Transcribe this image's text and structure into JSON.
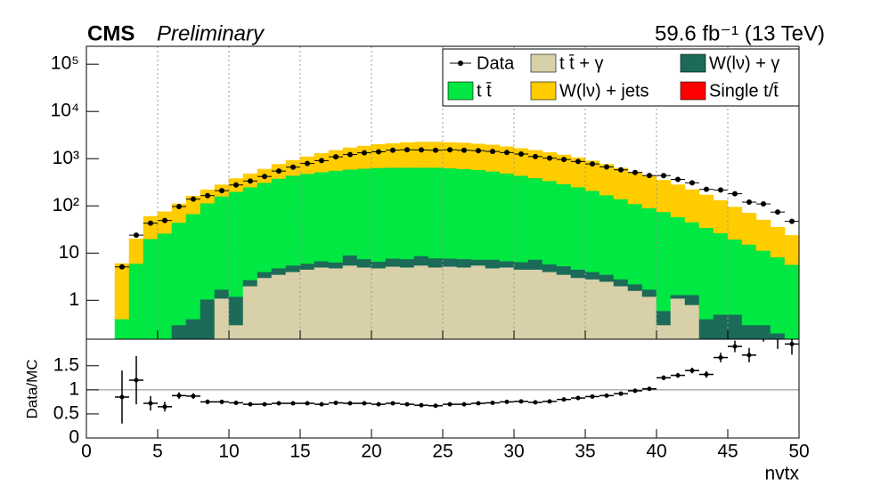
{
  "chart_data": [
    {
      "type": "histogram",
      "title": "CMS",
      "subtitle": "Preliminary",
      "annotation": "59.6 fb⁻¹ (13 TeV)",
      "stacked": true,
      "log_y": true,
      "grid": true,
      "legend": "top-right",
      "xlim": [
        0,
        50
      ],
      "xticks": [
        0,
        5,
        10,
        15,
        20,
        25,
        30,
        35,
        40,
        45,
        50
      ],
      "ylim": [
        0.15,
        240000
      ],
      "yticks": [
        {
          "value": 100000,
          "label": "10⁵"
        },
        {
          "value": 10000,
          "label": "10⁴"
        },
        {
          "value": 1000,
          "label": "10³"
        },
        {
          "value": 100,
          "label": "10²"
        },
        10,
        1
      ],
      "bins": [
        2,
        3,
        4,
        5,
        6,
        7,
        8,
        9,
        10,
        11,
        12,
        13,
        14,
        15,
        16,
        17,
        18,
        19,
        20,
        21,
        22,
        23,
        24,
        25,
        26,
        27,
        28,
        29,
        30,
        31,
        32,
        33,
        34,
        35,
        36,
        37,
        38,
        39,
        40,
        41,
        42,
        43,
        44,
        45,
        46,
        47,
        48,
        49,
        50
      ],
      "series": [
        {
          "name": "Data",
          "color": "#000000",
          "marker": "point",
          "values": [
            5.1,
            24,
            43,
            49,
            97,
            139,
            165,
            210,
            277,
            336,
            420,
            547,
            662,
            792,
            910,
            1095,
            1224,
            1332,
            1400,
            1512,
            1540,
            1530,
            1508,
            1540,
            1505,
            1476,
            1424,
            1350,
            1254,
            1110,
            1026,
            960,
            872,
            774,
            669,
            580,
            510,
            439,
            438,
            364,
            308,
            224,
            217,
            181,
            120,
            110,
            74,
            47
          ]
        },
        {
          "name": "t t̄ + γ",
          "color": "#d8d0a8",
          "values": [
            0,
            0,
            0,
            0,
            0,
            0,
            0.15,
            1.1,
            0.3,
            2,
            3,
            3.5,
            4,
            4.5,
            5,
            4.8,
            5.5,
            5,
            4.8,
            5.2,
            5,
            5.5,
            5,
            5.2,
            5,
            5.5,
            4.8,
            5,
            4.5,
            4.5,
            4,
            3.5,
            3,
            2.8,
            2.5,
            2,
            1.6,
            1.2,
            0.3,
            1.1,
            0.8,
            0,
            0,
            0,
            0,
            0,
            0,
            0
          ]
        },
        {
          "name": "W(lν) + γ",
          "color": "#1b6b58",
          "values": [
            0,
            0,
            0,
            0.15,
            0.3,
            0.4,
            0.9,
            0.6,
            0.9,
            0.7,
            1,
            1.3,
            1.5,
            1.5,
            1.8,
            1.6,
            3.5,
            2.5,
            1.8,
            2.5,
            2.5,
            3.2,
            2.8,
            2.5,
            2.5,
            1.8,
            2.5,
            1.8,
            2,
            2.8,
            1.8,
            1.8,
            1.5,
            1.2,
            1,
            0.8,
            0.6,
            0.5,
            0.3,
            0.2,
            0.5,
            0.4,
            0.5,
            0.5,
            0.3,
            0.3,
            0.2,
            0
          ]
        },
        {
          "name": "t t̄",
          "color": "#00e841",
          "values": [
            0.4,
            6,
            20,
            26,
            44,
            67,
            113,
            158,
            199,
            247,
            306,
            375,
            435,
            474,
            513,
            553,
            581,
            612,
            633,
            642,
            642,
            641,
            642,
            622,
            602,
            573,
            533,
            483,
            433,
            383,
            334,
            285,
            245,
            206,
            166,
            137,
            108,
            88,
            74,
            57,
            44,
            34,
            26,
            19,
            15,
            11,
            8,
            5.7
          ]
        },
        {
          "name": "W(lν) + jets",
          "color": "#ffcc00",
          "values": [
            5.6,
            14,
            40,
            49,
            66,
            93,
            106,
            120,
            180,
            230,
            290,
            380,
            480,
            620,
            780,
            940,
            1110,
            1230,
            1360,
            1450,
            1550,
            1600,
            1600,
            1570,
            1540,
            1470,
            1410,
            1310,
            1210,
            1110,
            1010,
            910,
            800,
            690,
            590,
            490,
            410,
            340,
            275,
            222,
            175,
            136,
            104,
            75,
            55,
            39,
            27,
            18
          ]
        },
        {
          "name": "Single t/t̄",
          "color": "#ff0000",
          "values": [
            0,
            0,
            0,
            0,
            0,
            0,
            0,
            0,
            0,
            0,
            0,
            0,
            0,
            0,
            0,
            0,
            0,
            0,
            0,
            0,
            0,
            0,
            0,
            0,
            0,
            0,
            0,
            0,
            0,
            0,
            0,
            0,
            0,
            0,
            0,
            0,
            0,
            0,
            0,
            0,
            0,
            0,
            0,
            0,
            0,
            0,
            0,
            0
          ]
        }
      ]
    },
    {
      "type": "scatter",
      "ylabel": "Data/MC",
      "xlabel": "nvtx",
      "color": "#000000",
      "reference_line": 1,
      "xlim": [
        0,
        50
      ],
      "xticks": [
        0,
        5,
        10,
        15,
        20,
        25,
        30,
        35,
        40,
        45,
        50
      ],
      "ylim": [
        0,
        2.05
      ],
      "yticks": [
        0,
        0.5,
        1,
        1.5
      ],
      "x": [
        2.5,
        3.5,
        4.5,
        5.5,
        6.5,
        7.5,
        8.5,
        9.5,
        10.5,
        11.5,
        12.5,
        13.5,
        14.5,
        15.5,
        16.5,
        17.5,
        18.5,
        19.5,
        20.5,
        21.5,
        22.5,
        23.5,
        24.5,
        25.5,
        26.5,
        27.5,
        28.5,
        29.5,
        30.5,
        31.5,
        32.5,
        33.5,
        34.5,
        35.5,
        36.5,
        37.5,
        38.5,
        39.5,
        40.5,
        41.5,
        42.5,
        43.5,
        44.5,
        45.5,
        46.5,
        47.5,
        48.5,
        49.5
      ],
      "values": [
        0.85,
        1.2,
        0.72,
        0.65,
        0.88,
        0.87,
        0.75,
        0.75,
        0.73,
        0.7,
        0.7,
        0.72,
        0.72,
        0.72,
        0.7,
        0.73,
        0.72,
        0.72,
        0.7,
        0.72,
        0.7,
        0.68,
        0.67,
        0.7,
        0.7,
        0.72,
        0.73,
        0.75,
        0.76,
        0.74,
        0.76,
        0.8,
        0.83,
        0.86,
        0.88,
        0.92,
        0.98,
        1.02,
        1.25,
        1.3,
        1.4,
        1.32,
        1.67,
        1.9,
        1.72,
        2.2,
        2.1,
        1.95
      ],
      "errors": [
        0.55,
        0.5,
        0.15,
        0.1,
        0.07,
        0.06,
        0.05,
        0.04,
        0.03,
        0.03,
        0.03,
        0.03,
        0.03,
        0.03,
        0.03,
        0.03,
        0.03,
        0.03,
        0.03,
        0.03,
        0.03,
        0.03,
        0.03,
        0.03,
        0.03,
        0.03,
        0.03,
        0.03,
        0.03,
        0.03,
        0.03,
        0.03,
        0.03,
        0.03,
        0.03,
        0.03,
        0.03,
        0.04,
        0.05,
        0.05,
        0.06,
        0.07,
        0.1,
        0.12,
        0.15,
        0.2,
        0.25,
        0.22
      ]
    }
  ]
}
